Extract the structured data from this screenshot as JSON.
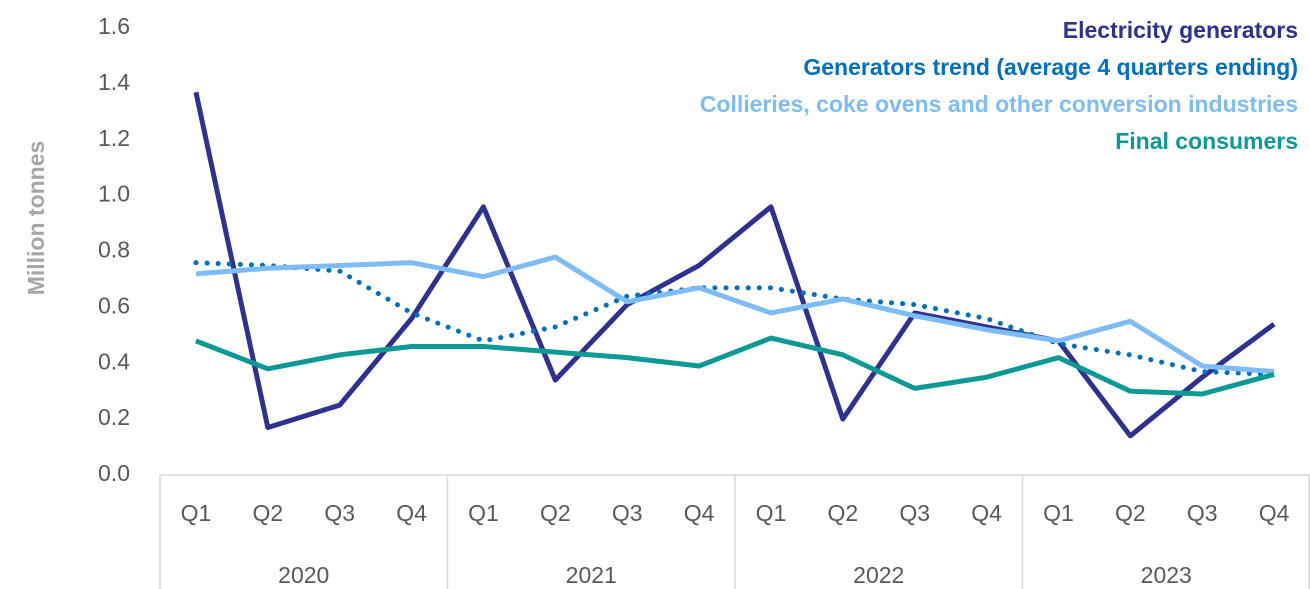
{
  "chart_data": {
    "type": "line",
    "y_label": "Million tonnes",
    "categories": [
      "Q1",
      "Q2",
      "Q3",
      "Q4",
      "Q1",
      "Q2",
      "Q3",
      "Q4",
      "Q1",
      "Q2",
      "Q3",
      "Q4",
      "Q1",
      "Q2",
      "Q3",
      "Q4"
    ],
    "groups": [
      {
        "label": "2020",
        "span": 4
      },
      {
        "label": "2021",
        "span": 4
      },
      {
        "label": "2022",
        "span": 4
      },
      {
        "label": "2023",
        "span": 4
      }
    ],
    "series": [
      {
        "name": "Electricity generators",
        "color": "#2e3192",
        "line_style": "solid",
        "values": [
          1.37,
          0.17,
          0.25,
          0.56,
          0.96,
          0.34,
          0.61,
          0.75,
          0.96,
          0.2,
          0.58,
          0.53,
          0.48,
          0.14,
          0.35,
          0.54
        ]
      },
      {
        "name": "Generators trend (average 4 quarters ending)",
        "color": "#0070c0",
        "line_style": "dotted",
        "values": [
          0.76,
          0.75,
          0.73,
          0.58,
          0.48,
          0.53,
          0.64,
          0.67,
          0.67,
          0.63,
          0.61,
          0.56,
          0.47,
          0.43,
          0.37,
          0.36
        ]
      },
      {
        "name": "Collieries, coke ovens and other conversion industries",
        "color": "#7dbcf7",
        "line_style": "solid",
        "values": [
          0.72,
          0.74,
          0.75,
          0.76,
          0.71,
          0.78,
          0.62,
          0.67,
          0.58,
          0.63,
          0.57,
          0.52,
          0.48,
          0.55,
          0.39,
          0.37
        ]
      },
      {
        "name": "Final consumers",
        "color": "#0e9a94",
        "line_style": "solid",
        "values": [
          0.48,
          0.38,
          0.43,
          0.46,
          0.46,
          0.44,
          0.42,
          0.39,
          0.49,
          0.43,
          0.31,
          0.35,
          0.42,
          0.3,
          0.29,
          0.36
        ]
      }
    ],
    "ylim": [
      0,
      1.6
    ],
    "yticks": [
      {
        "value": 0,
        "label": "0.0"
      },
      0.2,
      0.4,
      0.6,
      0.8,
      {
        "value": 1,
        "label": "1.0"
      },
      1.2,
      1.4,
      1.6
    ],
    "grid": false,
    "legend": "top-right"
  }
}
